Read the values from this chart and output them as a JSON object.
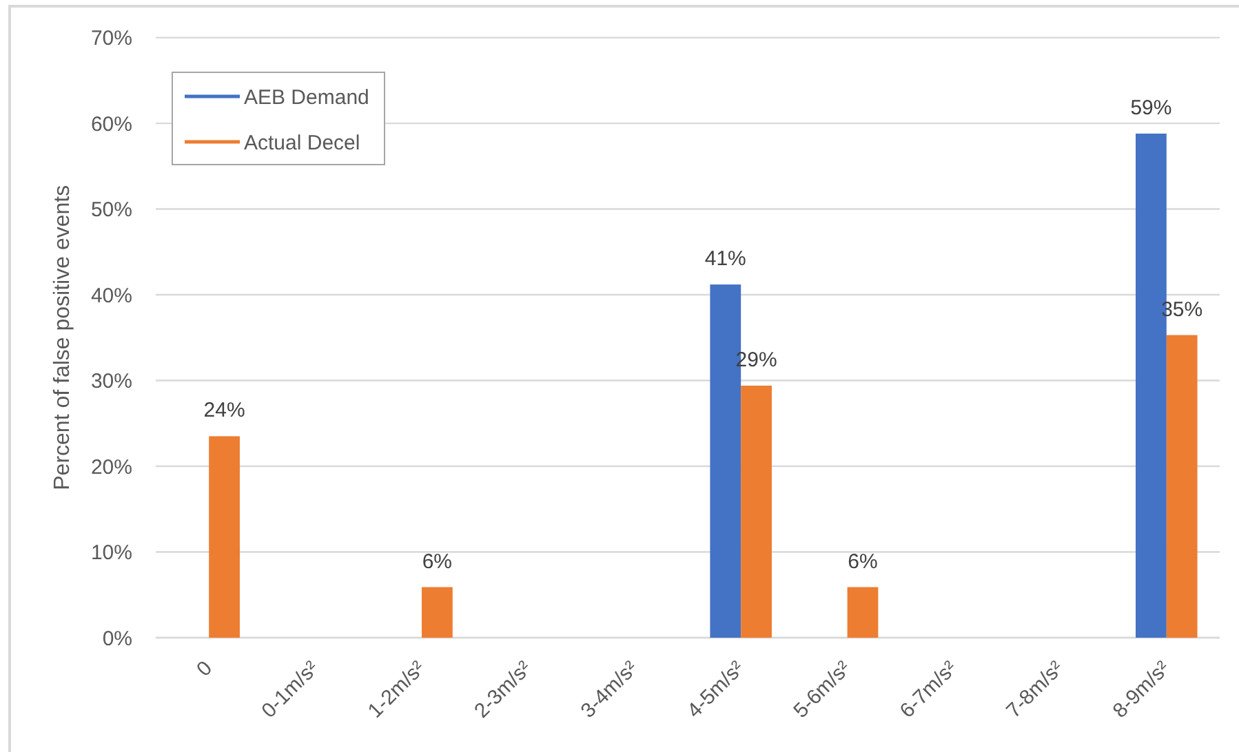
{
  "chart_data": {
    "type": "bar",
    "ylabel": "Percent of false positive events",
    "categories": [
      "0",
      "0-1m/s²",
      "1-2m/s²",
      "2-3m/s²",
      "3-4m/s²",
      "4-5m/s²",
      "5-6m/s²",
      "6-7m/s²",
      "7-8m/s²",
      "8-9m/s²"
    ],
    "ylim": [
      0,
      70
    ],
    "yticks": [
      {
        "value": 0,
        "label": "0%"
      },
      {
        "value": 10,
        "label": "10%"
      },
      {
        "value": 20,
        "label": "20%"
      },
      {
        "value": 30,
        "label": "30%"
      },
      {
        "value": 40,
        "label": "40%"
      },
      {
        "value": 50,
        "label": "50%"
      },
      {
        "value": 60,
        "label": "60%"
      },
      {
        "value": 70,
        "label": "70%"
      }
    ],
    "grid": "y",
    "legend": "top left",
    "series": [
      {
        "name": "AEB Demand",
        "color": "#4472c4",
        "values": [
          null,
          null,
          null,
          null,
          null,
          41.2,
          null,
          null,
          null,
          58.8
        ],
        "value_labels": [
          null,
          null,
          null,
          null,
          null,
          "41%",
          null,
          null,
          null,
          "59%"
        ]
      },
      {
        "name": "Actual Decel",
        "color": "#ed7d31",
        "values": [
          23.5,
          null,
          5.9,
          null,
          null,
          29.4,
          5.9,
          null,
          null,
          35.3
        ],
        "value_labels": [
          "24%",
          null,
          "6%",
          null,
          null,
          "29%",
          "6%",
          null,
          null,
          "35%"
        ]
      }
    ]
  }
}
